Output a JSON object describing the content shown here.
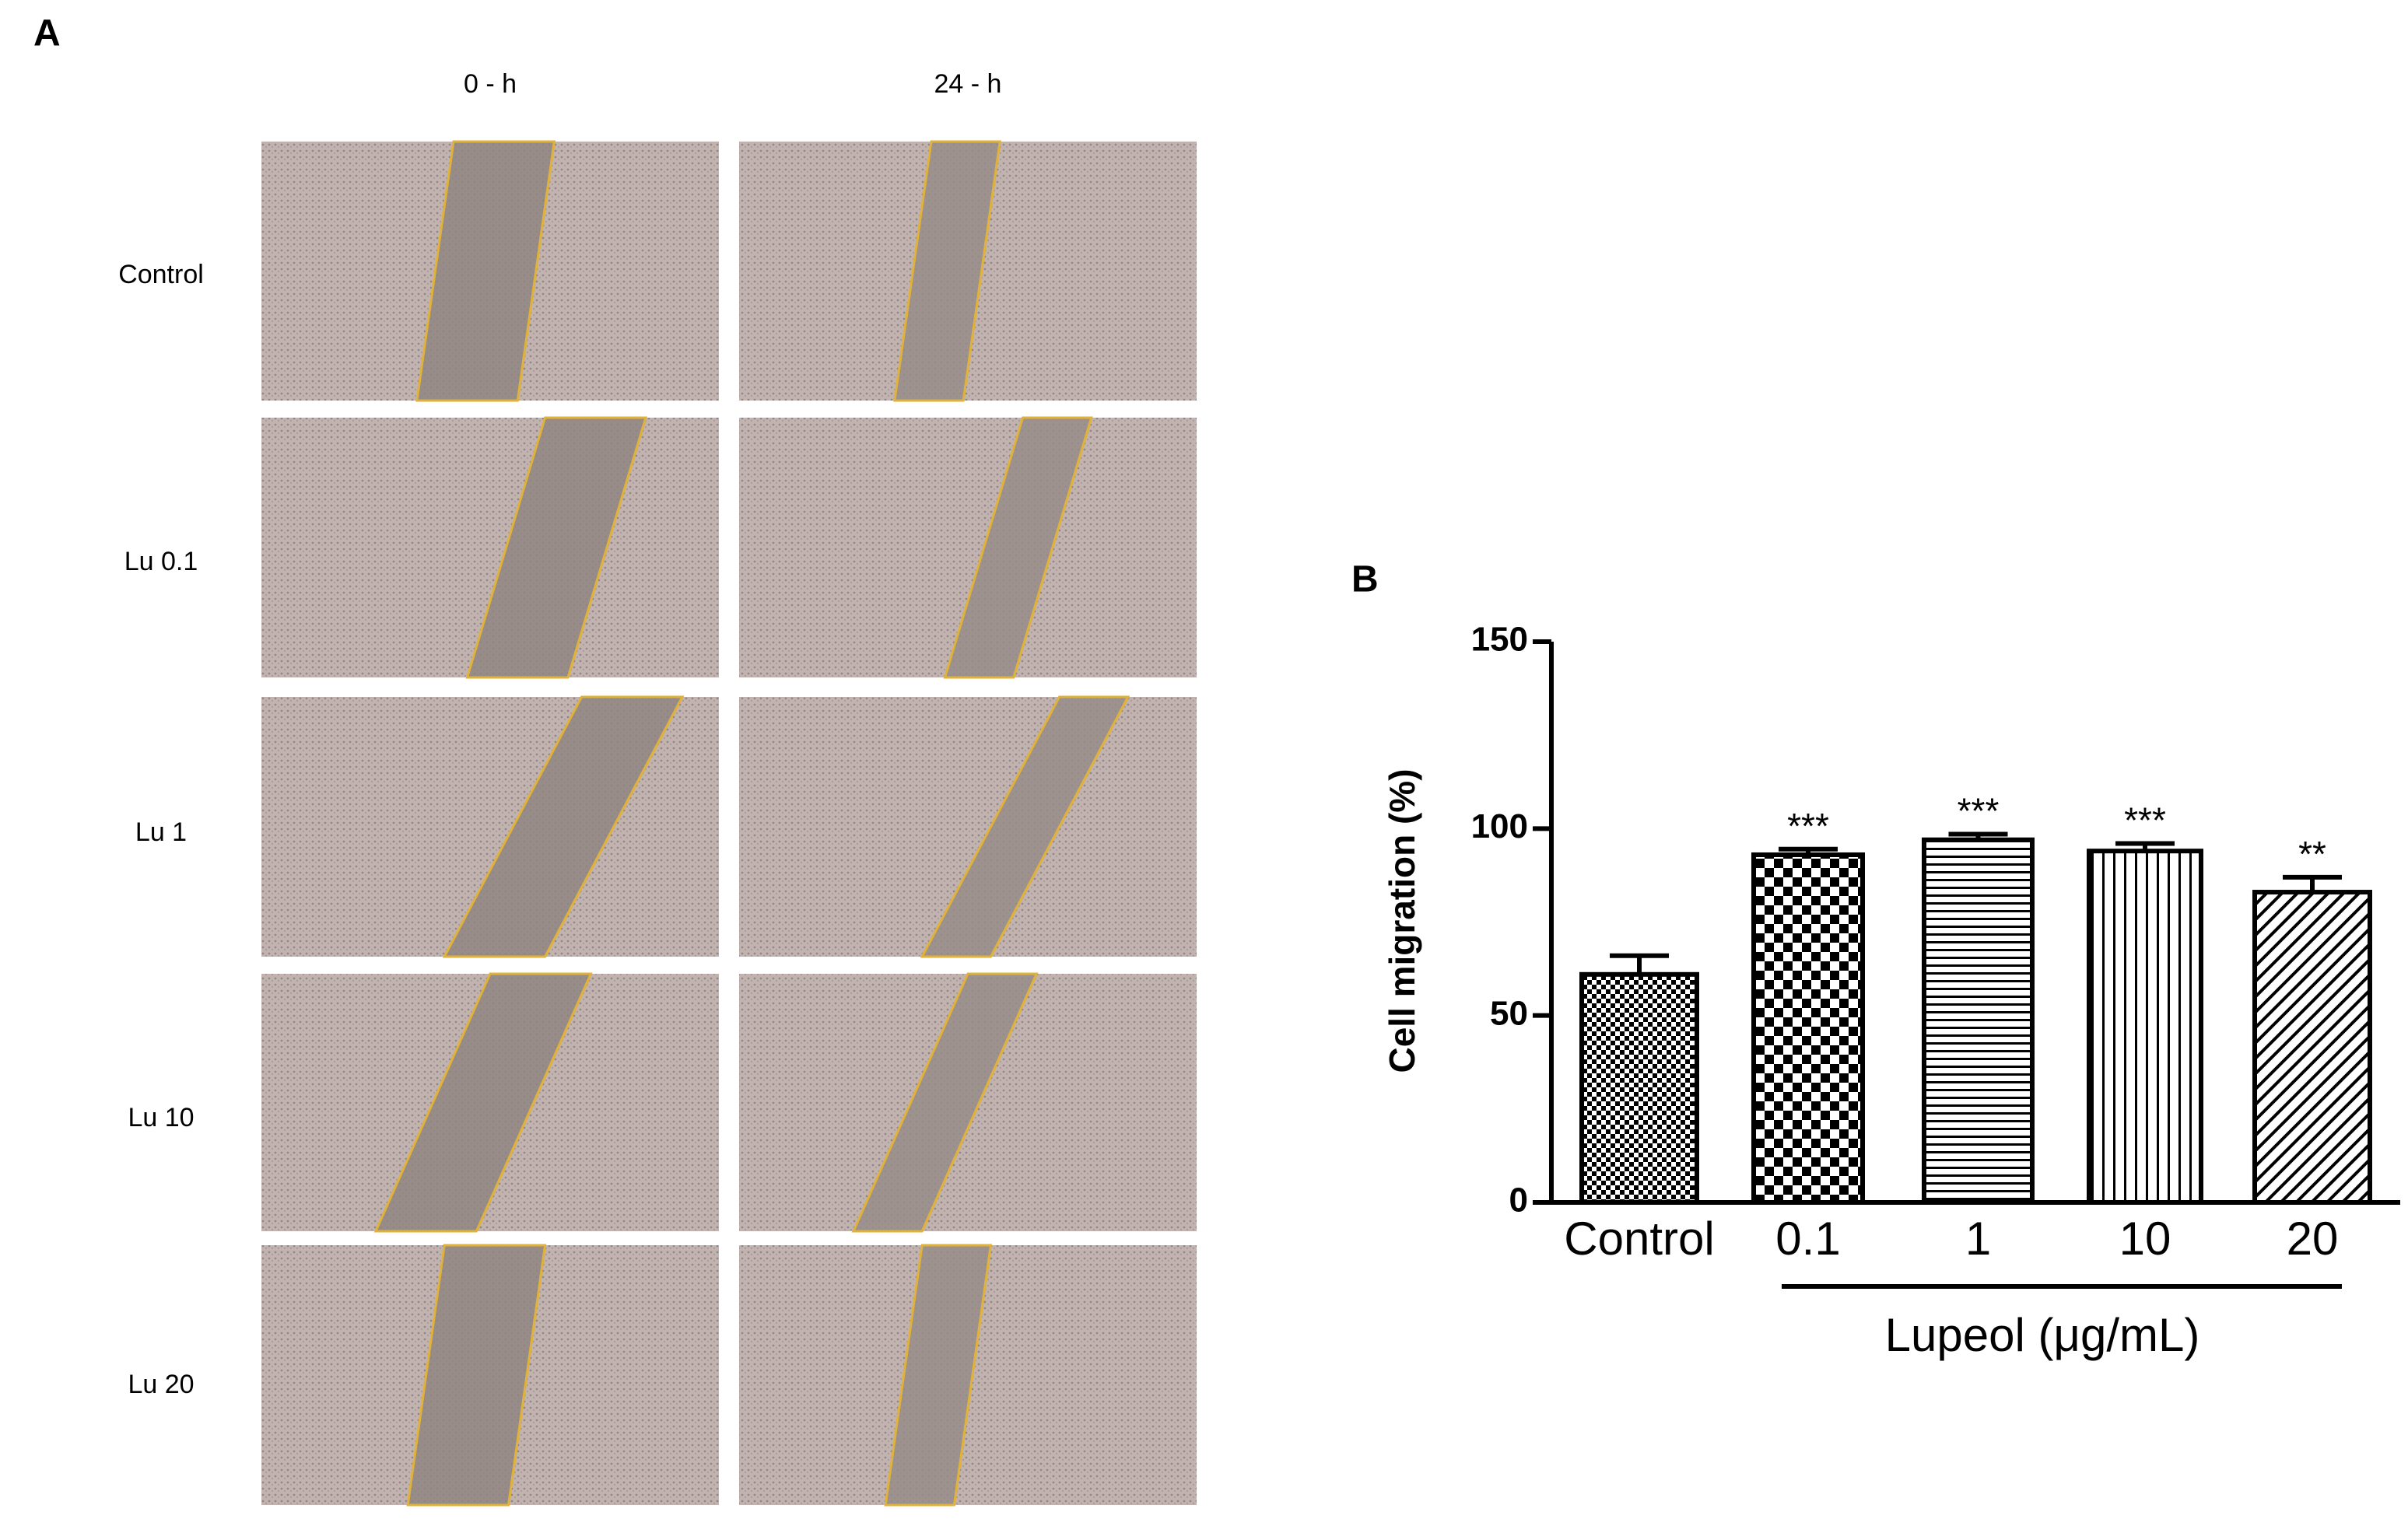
{
  "panel_a": {
    "label": "A",
    "columns": [
      "0 - h",
      "24 - h"
    ],
    "rows": [
      "Control",
      "Lu 0.1",
      "Lu 1",
      "Lu 10",
      "Lu 20"
    ]
  },
  "chart_data": {
    "type": "bar",
    "panel_label": "B",
    "ylabel": "Cell migration (%)",
    "xlabel": "Lupeol (μg/mL)",
    "categories": [
      "Control",
      "0.1",
      "1",
      "10",
      "20"
    ],
    "values": [
      61,
      93,
      97,
      94,
      83
    ],
    "errors": [
      5,
      1.5,
      1.5,
      2,
      4
    ],
    "annotations": [
      null,
      "***",
      "***",
      "***",
      "**"
    ],
    "color": "#000000",
    "ylim": [
      0,
      150
    ],
    "yticks": [
      0,
      50,
      100,
      150
    ]
  }
}
